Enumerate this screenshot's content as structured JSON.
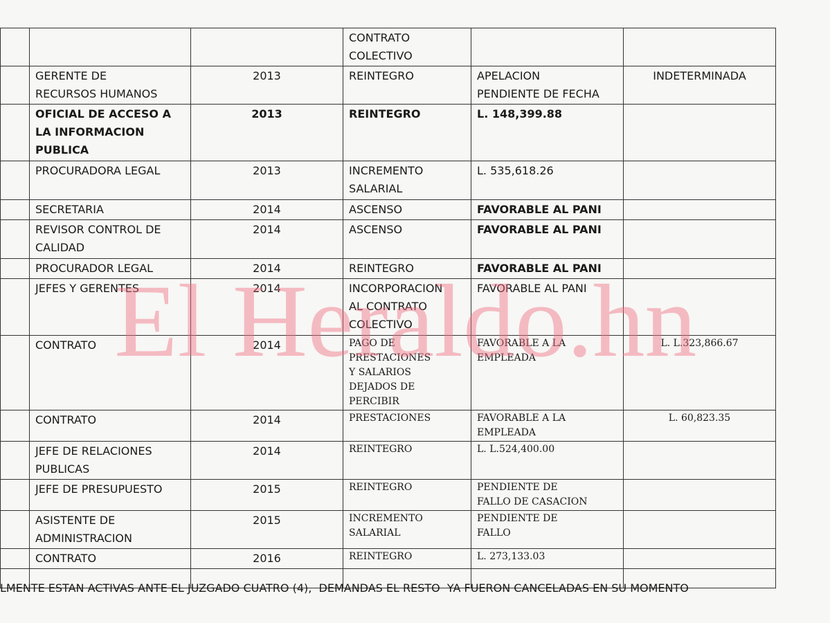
{
  "table": {
    "rows": [
      [
        null,
        null,
        "CONTRATO\nCOLECTIVO",
        null,
        null
      ],
      [
        "GERENTE DE\nRECURSOS HUMANOS",
        "2013",
        "REINTEGRO",
        "APELACION\nPENDIENTE DE FECHA",
        "INDETERMINADA"
      ],
      [
        "OFICIAL DE ACCESO A\nLA INFORMACION\nPUBLICA",
        "2013",
        "REINTEGRO",
        "L. 148,399.88",
        null
      ],
      [
        "PROCURADORA LEGAL",
        "2013",
        "INCREMENTO\nSALARIAL",
        "L. 535,618.26",
        null
      ],
      [
        "SECRETARIA",
        "2014",
        "ASCENSO",
        "FAVORABLE AL PANI",
        null
      ],
      [
        "REVISOR CONTROL DE\nCALIDAD",
        "2014",
        "ASCENSO",
        "FAVORABLE AL PANI",
        null
      ],
      [
        "PROCURADOR LEGAL",
        "2014",
        "REINTEGRO",
        "FAVORABLE AL PANI",
        null
      ],
      [
        "JEFES Y GERENTES",
        "2014",
        "INCORPORACION\nAL CONTRATO\nCOLECTIVO",
        "FAVORABLE AL PANI",
        null
      ],
      [
        "CONTRATO",
        "2014",
        "PAGO DE\nPRESTACIONES\nY SALARIOS\nDEJADOS DE\nPERCIBIR",
        "FAVORABLE A LA\nEMPLEADA",
        "L. L.323,866.67"
      ],
      [
        "CONTRATO",
        "2014",
        "PRESTACIONES",
        "FAVORABLE A LA\nEMPLEADA",
        "L. 60,823.35"
      ],
      [
        "JEFE DE RELACIONES\nPUBLICAS",
        "2014",
        "REINTEGRO",
        "L. L.524,400.00",
        null
      ],
      [
        "JEFE DE PRESUPUESTO",
        "2015",
        "REINTEGRO",
        "PENDIENTE DE\nFALLO DE CASACION",
        null
      ],
      [
        "ASISTENTE DE\nADMINISTRACION",
        "2015",
        "INCREMENTO\nSALARIAL",
        "PENDIENTE DE\nFALLO",
        null
      ],
      [
        "CONTRATO",
        "2016",
        "REINTEGRO",
        "L. 273,133.03",
        null
      ],
      [
        null,
        null,
        null,
        null,
        null
      ]
    ]
  },
  "footer": "LMENTE ESTAN ACTIVAS ANTE EL JUZGADO CUATRO (4),  DEMANDAS EL RESTO  YA FUERON CANCELADAS EN SU MOMENTO",
  "watermark": "El Heraldo.hn"
}
